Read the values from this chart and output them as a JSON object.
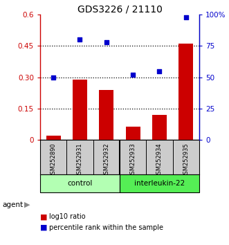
{
  "title": "GDS3226 / 21110",
  "samples": [
    "GSM252890",
    "GSM252931",
    "GSM252932",
    "GSM252933",
    "GSM252934",
    "GSM252935"
  ],
  "log10_ratio": [
    0.02,
    0.29,
    0.24,
    0.065,
    0.12,
    0.46
  ],
  "percentile_rank": [
    50,
    80,
    78,
    52,
    55,
    98
  ],
  "bar_color": "#cc0000",
  "dot_color": "#0000cc",
  "ylim_left": [
    0,
    0.6
  ],
  "yticks_left": [
    0,
    0.15,
    0.3,
    0.45,
    0.6
  ],
  "ytick_labels_left": [
    "0",
    "0.15",
    "0.30",
    "0.45",
    "0.6"
  ],
  "yticks_right": [
    0,
    25,
    50,
    75,
    100
  ],
  "ytick_labels_right": [
    "0",
    "25",
    "50",
    "75",
    "100%"
  ],
  "hlines": [
    0.15,
    0.3,
    0.45
  ],
  "control_label": "control",
  "interleukin_label": "interleukin-22",
  "agent_label": "agent",
  "legend_bar_label": "log10 ratio",
  "legend_dot_label": "percentile rank within the sample",
  "control_color_light": "#b3ffb3",
  "interleukin_color": "#55ee55",
  "sample_box_color": "#cccccc",
  "background_color": "#ffffff"
}
